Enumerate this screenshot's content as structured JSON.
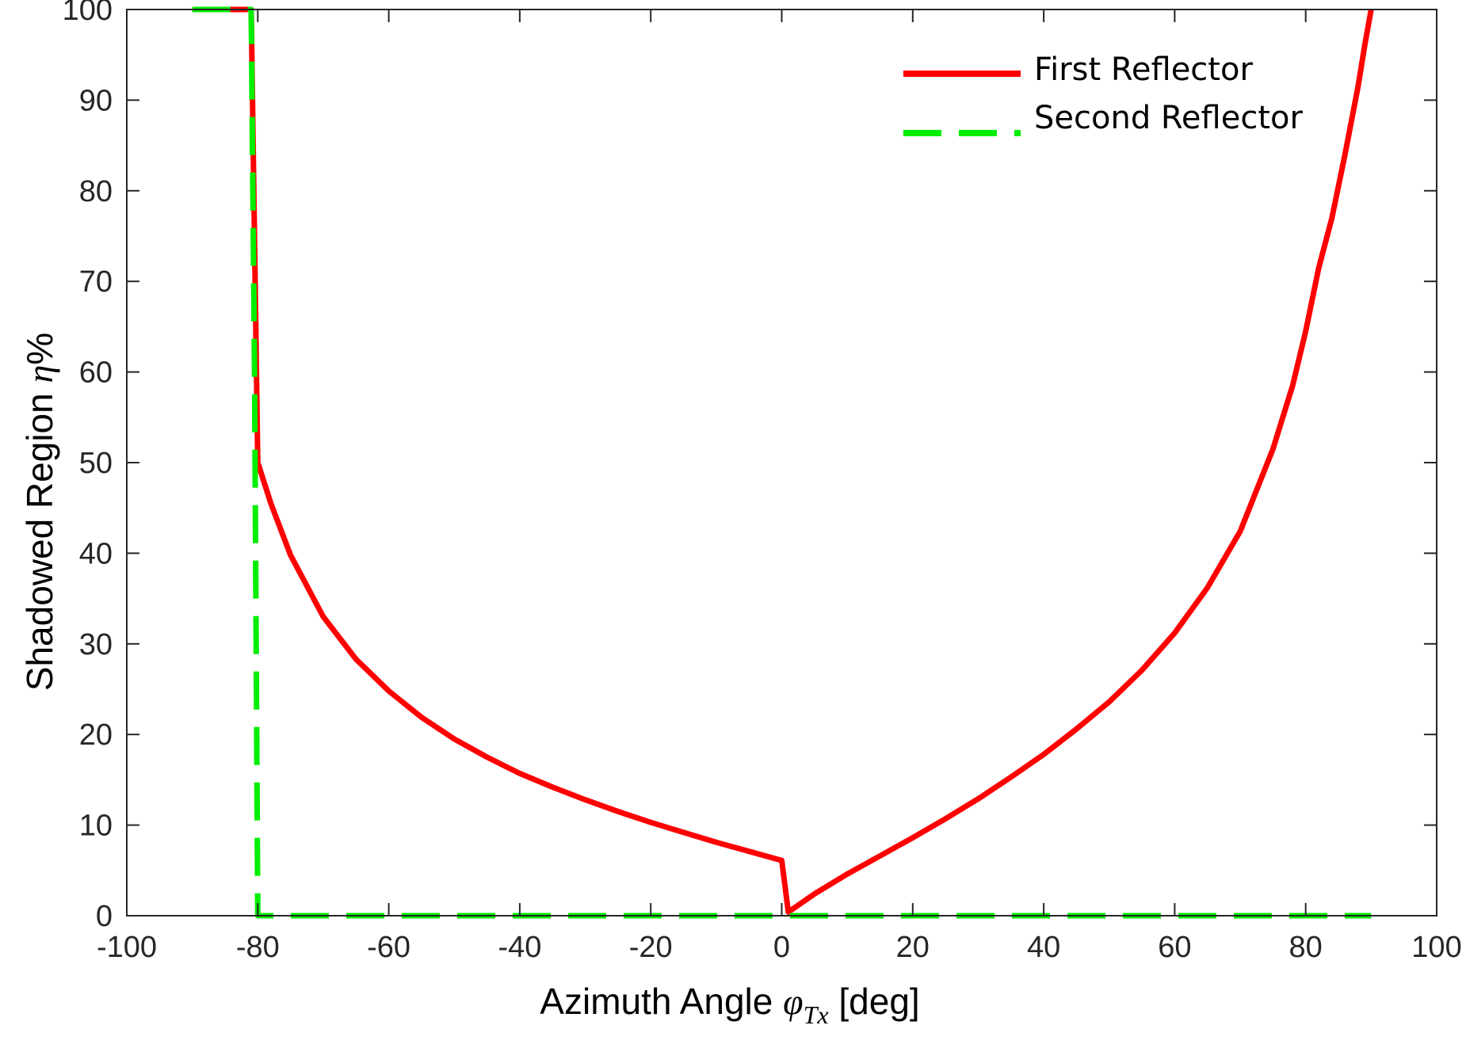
{
  "chart_data": {
    "type": "line",
    "title": "",
    "xlabel": {
      "prefix": "Azimuth Angle ",
      "symbol": "φ",
      "subscript": "Tx",
      "suffix": " [deg]"
    },
    "ylabel": {
      "prefix": "Shadowed Region ",
      "symbol": "η",
      "suffix": "%"
    },
    "xlim": [
      -100,
      100
    ],
    "ylim": [
      0,
      100
    ],
    "xticks": [
      -100,
      -80,
      -60,
      -40,
      -20,
      0,
      20,
      40,
      60,
      80,
      100
    ],
    "xtick_labels": [
      "-100",
      "-80",
      "-60",
      "-40",
      "-20",
      "0",
      "20",
      "40",
      "60",
      "80",
      "100"
    ],
    "yticks": [
      0,
      10,
      20,
      30,
      40,
      50,
      60,
      70,
      80,
      90,
      100
    ],
    "ytick_labels": [
      "0",
      "10",
      "20",
      "30",
      "40",
      "50",
      "60",
      "70",
      "80",
      "90",
      "100"
    ],
    "grid": false,
    "legend_position": "top-right",
    "series": [
      {
        "name": "First Reflector",
        "color": "#ff0000",
        "style": "solid",
        "x": [
          -90,
          -81,
          -80,
          -78,
          -75,
          -70,
          -65,
          -60,
          -55,
          -50,
          -45,
          -40,
          -35,
          -30,
          -25,
          -20,
          -15,
          -10,
          -5,
          0,
          1,
          5,
          10,
          15,
          20,
          25,
          30,
          35,
          40,
          45,
          50,
          55,
          60,
          65,
          70,
          75,
          78,
          80,
          82,
          84,
          86,
          88,
          89,
          90
        ],
        "y": [
          100,
          100,
          50,
          45.5,
          39.8,
          33,
          28.3,
          24.8,
          21.9,
          19.5,
          17.5,
          15.7,
          14.2,
          12.8,
          11.5,
          10.3,
          9.2,
          8.1,
          7.1,
          6.1,
          0.4,
          2.4,
          4.6,
          6.6,
          8.6,
          10.7,
          12.9,
          15.3,
          17.8,
          20.6,
          23.6,
          27.1,
          31.2,
          36.2,
          42.4,
          51.5,
          58.5,
          64.5,
          71.5,
          77,
          84,
          91.5,
          96,
          100
        ]
      },
      {
        "name": "Second Reflector",
        "color": "#00ee00",
        "style": "dashed",
        "x": [
          -90,
          -81,
          -80.5,
          -80,
          -75,
          -50,
          -25,
          0,
          25,
          50,
          75,
          90
        ],
        "y": [
          100,
          100,
          60,
          0,
          0,
          0,
          0,
          0,
          0,
          0,
          0,
          0
        ]
      }
    ]
  }
}
